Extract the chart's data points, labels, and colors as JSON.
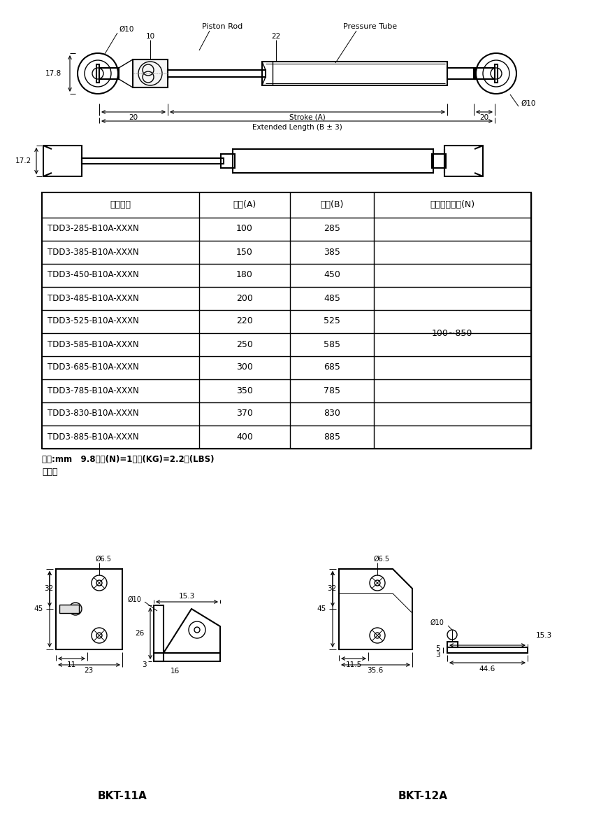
{
  "bg_color": "#ffffff",
  "line_color": "#000000",
  "table_headers": [
    "產品型號",
    "行程(A)",
    "總長(B)",
    "壓力承製範圍(N)"
  ],
  "table_rows": [
    [
      "TDD3-285-B10A-XXXN",
      "100",
      "285"
    ],
    [
      "TDD3-385-B10A-XXXN",
      "150",
      "385"
    ],
    [
      "TDD3-450-B10A-XXXN",
      "180",
      "450"
    ],
    [
      "TDD3-485-B10A-XXXN",
      "200",
      "485"
    ],
    [
      "TDD3-525-B10A-XXXN",
      "220",
      "525"
    ],
    [
      "TDD3-585-B10A-XXXN",
      "250",
      "585"
    ],
    [
      "TDD3-685-B10A-XXXN",
      "300",
      "685"
    ],
    [
      "TDD3-785-B10A-XXXN",
      "350",
      "785"
    ],
    [
      "TDD3-830-B10A-XXXN",
      "370",
      "830"
    ],
    [
      "TDD3-885-B10A-XXXN",
      "400",
      "885"
    ]
  ],
  "pressure_range": "100~850",
  "note": "單位:mm   9.8牛頓(N)=1公斤(KG)=2.2磅(LBS)",
  "note2": "選配件",
  "bkt11a_label": "BKT-11A",
  "bkt12a_label": "BKT-12A",
  "dim_17_8": "17.8",
  "dim_17_2": "17.2",
  "dim_10_top": "Ø10",
  "dim_10_label": "10",
  "dim_22": "22",
  "dim_20": "20",
  "dim_piston_rod": "Piston Rod",
  "dim_pressure_tube": "Pressure Tube",
  "dim_stroke_a": "Stroke (A)",
  "dim_ext_len": "Extended Length (B ± 3)",
  "dim_phi10_right": "Ø10",
  "dim_6_5": "Ø6.5",
  "dim_45": "45",
  "dim_32": "32",
  "dim_11": "11",
  "dim_23": "23",
  "dim_15_3": "15.3",
  "dim_26": "26",
  "dim_16": "16",
  "dim_3": "3",
  "dim_11_5": "11.5",
  "dim_35_6": "35.6",
  "dim_5": "5",
  "dim_44_6": "44.6",
  "dim_phi10_bkt": "Ø10"
}
